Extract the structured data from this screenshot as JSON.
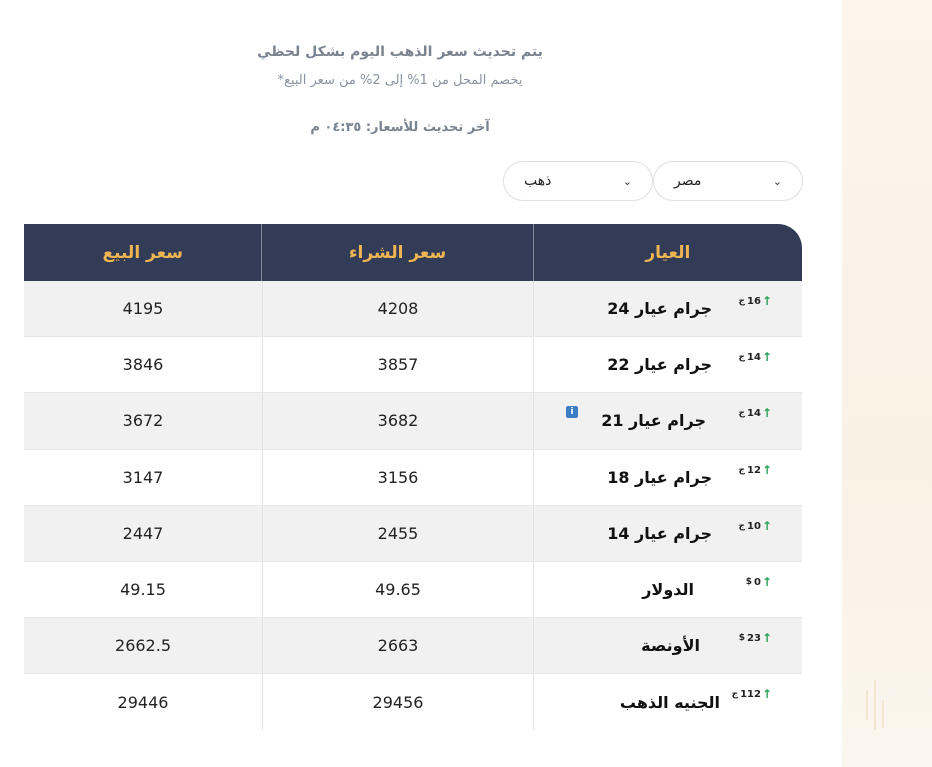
{
  "header": {
    "title": "يتم تحديث سعر الذهب اليوم بشكل لحظي",
    "note": "*يخصم المحل من 1% إلى 2% من سعر البيع",
    "last_update": "آخر تحديث للأسعار: ٠٤:٣٥ م"
  },
  "filters": {
    "country": "مصر",
    "metal": "ذهب"
  },
  "table": {
    "columns": [
      "العيار",
      "سعر الشراء",
      "سعر البيع"
    ],
    "rows": [
      {
        "name": "جرام عيار 24",
        "change": "16",
        "unit": "ج",
        "buy": "4208",
        "sell": "4195"
      },
      {
        "name": "جرام عيار 22",
        "change": "14",
        "unit": "ج",
        "buy": "3857",
        "sell": "3846"
      },
      {
        "name": "جرام عيار 21",
        "change": "14",
        "unit": "ج",
        "buy": "3682",
        "sell": "3672"
      },
      {
        "name": "جرام عيار 18",
        "change": "12",
        "unit": "ج",
        "buy": "3156",
        "sell": "3147"
      },
      {
        "name": "جرام عيار 14",
        "change": "10",
        "unit": "ج",
        "buy": "2455",
        "sell": "2447"
      },
      {
        "name": "الدولار",
        "change": "0",
        "unit": "$",
        "buy": "49.65",
        "sell": "49.15"
      },
      {
        "name": "الأونصة",
        "change": "23",
        "unit": "$",
        "buy": "2663",
        "sell": "2662.5"
      },
      {
        "name": "الجنيه الذهب",
        "change": "112",
        "unit": "ج",
        "buy": "29456",
        "sell": "29446"
      }
    ]
  },
  "icons": {
    "trend_up": "arrow-up-icon",
    "info": "info-icon",
    "dropdown": "chevron-down-icon"
  },
  "colors": {
    "header_bg": "#323c57",
    "header_text": "#f0b553",
    "trend_up": "#2aa15a",
    "info": "#3a7ec6"
  }
}
